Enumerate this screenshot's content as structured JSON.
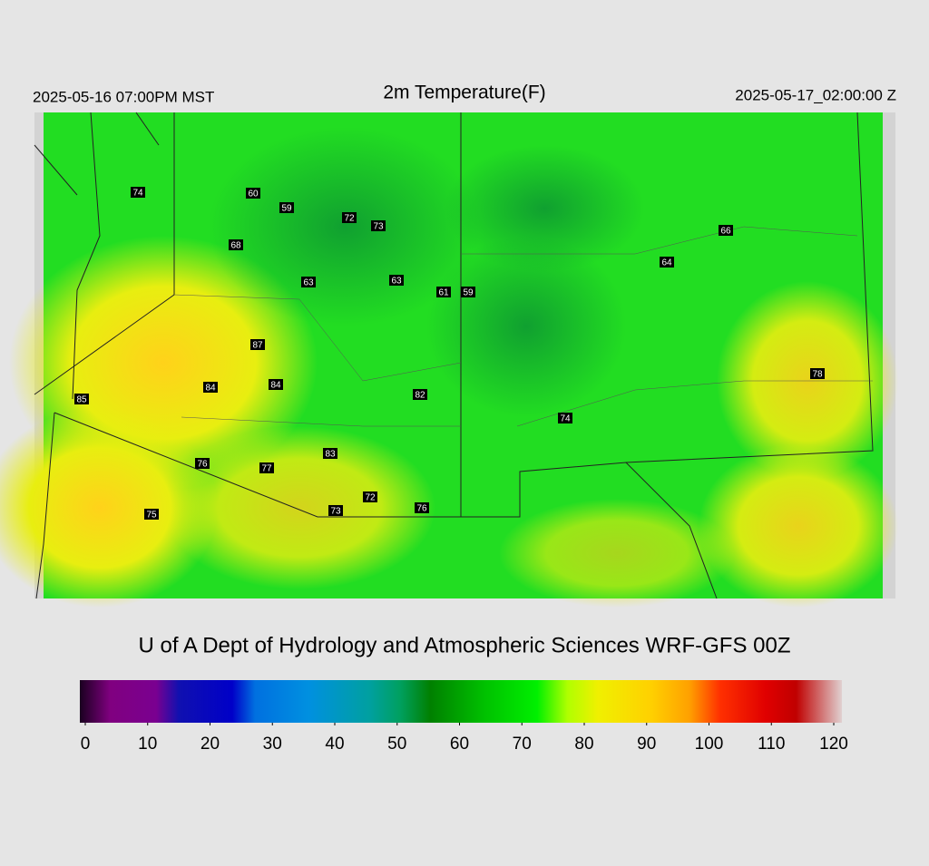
{
  "header": {
    "left": "2025-05-16 07:00PM MST",
    "title": "2m Temperature(F)",
    "right": "2025-05-17_02:00:00 Z"
  },
  "map": {
    "stations": [
      74,
      60,
      59,
      72,
      73,
      68,
      63,
      63,
      61,
      59,
      66,
      64,
      87,
      84,
      84,
      85,
      82,
      74,
      78,
      83,
      76,
      77,
      72,
      73,
      76,
      75
    ]
  },
  "credit": "U of A Dept of Hydrology and Atmospheric Sciences WRF-GFS 00Z",
  "colorbar": {
    "lim": [
      0,
      120
    ],
    "ticks": [
      0,
      10,
      20,
      30,
      40,
      50,
      60,
      70,
      80,
      90,
      100,
      110,
      120
    ]
  }
}
